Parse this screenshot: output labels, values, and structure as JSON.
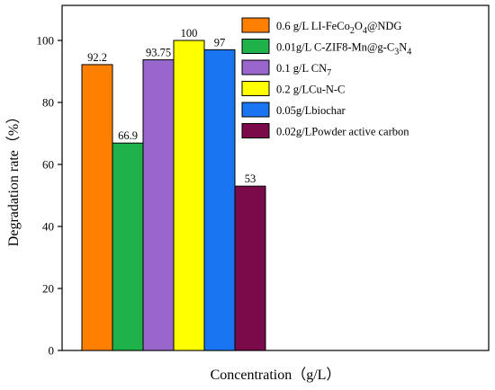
{
  "chart_data": {
    "type": "bar",
    "title": "",
    "xlabel": "Concentration（g/L）",
    "ylabel": "Degradation rate（%）",
    "ylim": [
      0,
      110
    ],
    "yticks": [
      0,
      20,
      40,
      60,
      80,
      100
    ],
    "grid": false,
    "legend_position": "top-right",
    "series": [
      {
        "name": "0.6 g/L LI-FeCo2O4@NDG",
        "value": 92.2,
        "label": "92.2",
        "color": "#ff8000"
      },
      {
        "name": "0.01g/L C-ZIF8-Mn@g-C3N4",
        "value": 66.9,
        "label": "66.9",
        "color": "#1fb24a"
      },
      {
        "name": "0.1 g/L CN7",
        "value": 93.75,
        "label": "93.75",
        "color": "#9966cc"
      },
      {
        "name": "0.2 g/LCu-N-C",
        "value": 100,
        "label": "100",
        "color": "#ffff00"
      },
      {
        "name": "0.05g/Lbiochar",
        "value": 97,
        "label": "97",
        "color": "#1a75f2"
      },
      {
        "name": "0.02g/LPowder active carbon",
        "value": 53,
        "label": "53",
        "color": "#7a0a4a"
      }
    ],
    "legend_rich": [
      [
        {
          "t": "0.6 g/L LI-FeCo"
        },
        {
          "t": "2",
          "sub": true
        },
        {
          "t": "O"
        },
        {
          "t": "4",
          "sub": true
        },
        {
          "t": "@NDG"
        }
      ],
      [
        {
          "t": "0.01g/L C-ZIF8-Mn@g-C"
        },
        {
          "t": "3",
          "sub": true
        },
        {
          "t": "N"
        },
        {
          "t": "4",
          "sub": true
        }
      ],
      [
        {
          "t": "0.1 g/L CN"
        },
        {
          "t": "7",
          "sub": true
        }
      ],
      [
        {
          "t": "0.2 g/LCu-N-C"
        }
      ],
      [
        {
          "t": "0.05g/Lbiochar"
        }
      ],
      [
        {
          "t": "0.02g/LPowder active carbon"
        }
      ]
    ]
  }
}
